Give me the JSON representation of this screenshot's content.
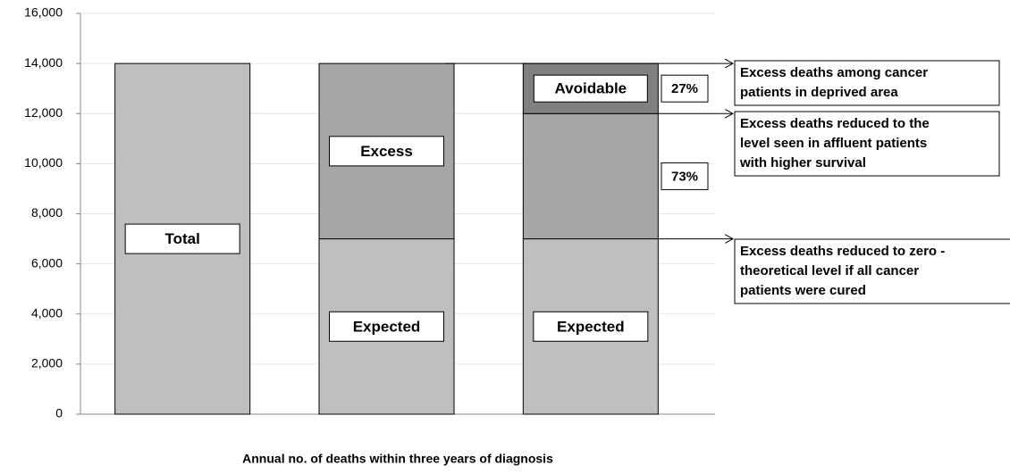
{
  "chart_data": {
    "type": "stacked-bar",
    "x_label": "Annual no. of deaths within three years of diagnosis",
    "categories": [
      null,
      null,
      null
    ],
    "series": [
      {
        "color": "#bfbfbf",
        "values": [
          14000,
          7000,
          7000
        ],
        "labels": [
          "Total",
          "Expected",
          "Expected"
        ]
      },
      {
        "color": "#a6a6a6",
        "values": [
          null,
          7000,
          5000
        ],
        "labels": [
          null,
          "Excess",
          null
        ]
      },
      {
        "color": "#808080",
        "values": [
          null,
          null,
          2000
        ],
        "labels": [
          null,
          null,
          "Avoidable"
        ]
      }
    ],
    "share_labels": [
      "27%",
      "73%"
    ],
    "callouts": [
      [
        "Excess deaths among cancer",
        "patients in deprived area"
      ],
      [
        "Excess deaths reduced to the",
        "level seen in affluent patients",
        "with higher survival"
      ],
      [
        "Excess deaths reduced to zero -",
        "theoretical level if all cancer",
        "patients were cured"
      ]
    ],
    "ylim": [
      0,
      16000
    ],
    "yticks": [
      {
        "value": 0,
        "label": "0"
      },
      {
        "value": 2000,
        "label": "2,000"
      },
      {
        "value": 4000,
        "label": "4,000"
      },
      {
        "value": 6000,
        "label": "6,000"
      },
      {
        "value": 8000,
        "label": "8,000"
      },
      {
        "value": 10000,
        "label": "10,000"
      },
      {
        "value": 12000,
        "label": "12,000"
      },
      {
        "value": 14000,
        "label": "14,000"
      },
      {
        "value": 16000,
        "label": "16,000"
      }
    ],
    "grid": true
  }
}
